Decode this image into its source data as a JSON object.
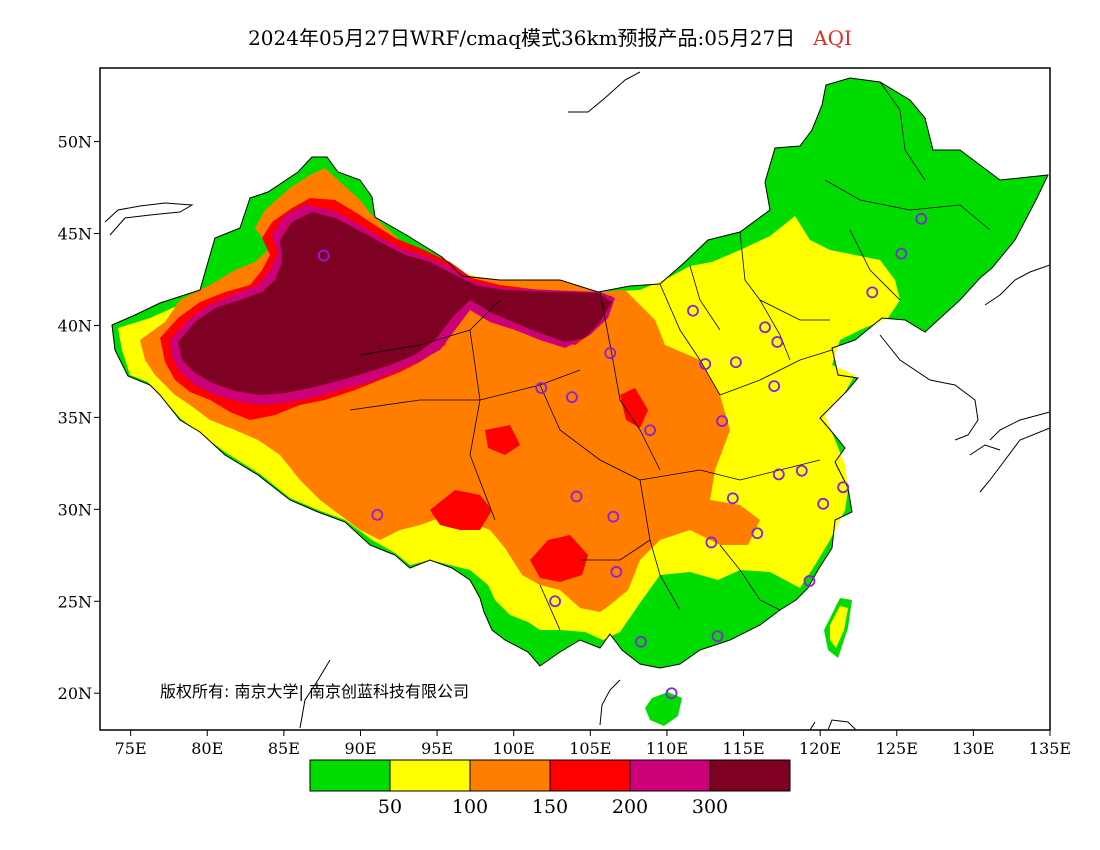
{
  "title": {
    "main": "2024年05月27日WRF/cmaq模式36km预报产品:05月27日",
    "variable": "AQI"
  },
  "colors": {
    "good": "#00dc00",
    "moderate": "#ffff00",
    "usg": "#ff7e00",
    "unhealthy": "#ff0000",
    "very_unhealthy": "#cc0077",
    "hazardous": "#7e0023",
    "station": "#8822dd",
    "border": "#000000"
  },
  "axes": {
    "x_ticks": [
      "75E",
      "80E",
      "85E",
      "90E",
      "95E",
      "100E",
      "105E",
      "110E",
      "115E",
      "120E",
      "125E",
      "130E",
      "135E"
    ],
    "y_ticks": [
      "20N",
      "25N",
      "30N",
      "35N",
      "40N",
      "45N",
      "50N"
    ]
  },
  "colorbar": {
    "labels": [
      "50",
      "100",
      "150",
      "200",
      "300"
    ]
  },
  "copyright": "版权所有: 南京大学| 南京创蓝科技有限公司",
  "chart_data": {
    "type": "heatmap",
    "title": "2024年05月27日WRF/cmaq模式36km预报产品:05月27日 AQI",
    "x_range": [
      73,
      135
    ],
    "y_range": [
      18,
      54
    ],
    "x_ticks": [
      75,
      80,
      85,
      90,
      95,
      100,
      105,
      110,
      115,
      120,
      125,
      130,
      135
    ],
    "y_ticks": [
      20,
      25,
      30,
      35,
      40,
      45,
      50
    ],
    "levels": [
      50,
      100,
      150,
      200,
      300
    ],
    "level_colors": [
      "#00dc00",
      "#ffff00",
      "#ff7e00",
      "#ff0000",
      "#cc0077",
      "#7e0023"
    ],
    "stations": [
      [
        87.6,
        43.8
      ],
      [
        91.1,
        29.7
      ],
      [
        101.8,
        36.6
      ],
      [
        103.8,
        36.1
      ],
      [
        106.3,
        38.5
      ],
      [
        104.1,
        30.7
      ],
      [
        106.5,
        29.6
      ],
      [
        106.7,
        26.6
      ],
      [
        102.7,
        25.0
      ],
      [
        108.3,
        22.8
      ],
      [
        110.3,
        20.0
      ],
      [
        113.3,
        23.1
      ],
      [
        108.9,
        34.3
      ],
      [
        112.5,
        37.9
      ],
      [
        111.7,
        40.8
      ],
      [
        114.5,
        38.0
      ],
      [
        116.4,
        39.9
      ],
      [
        117.2,
        39.1
      ],
      [
        117.0,
        36.7
      ],
      [
        113.6,
        34.8
      ],
      [
        114.3,
        30.6
      ],
      [
        112.9,
        28.2
      ],
      [
        115.9,
        28.7
      ],
      [
        117.3,
        31.9
      ],
      [
        118.8,
        32.1
      ],
      [
        120.2,
        30.3
      ],
      [
        121.5,
        31.2
      ],
      [
        119.3,
        26.1
      ],
      [
        123.4,
        41.8
      ],
      [
        125.3,
        43.9
      ],
      [
        126.6,
        45.8
      ]
    ]
  }
}
